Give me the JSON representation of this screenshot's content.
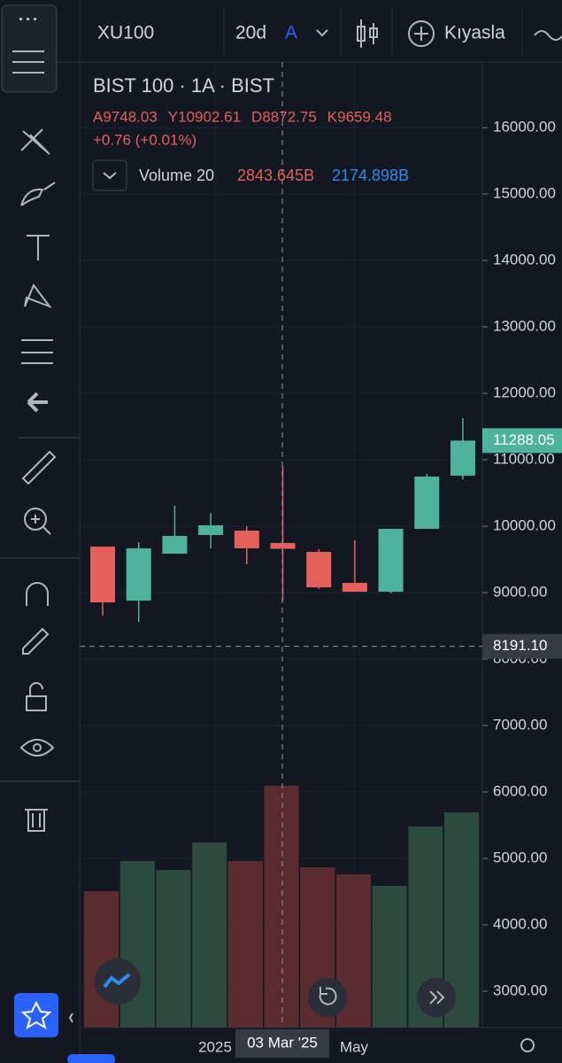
{
  "toolbar": {
    "symbol": "XU100",
    "interval": "20d",
    "mode": "A",
    "compare": "Kıyasla"
  },
  "legend": {
    "title": "BIST 100 · 1A · BIST",
    "ohlc_letters": [
      "A",
      "Y",
      "D",
      "K"
    ],
    "change": "+0.76 (+0.01%)",
    "volume_name": "Volume 20",
    "volume_values": [
      "2843.645B",
      "2174.898B"
    ]
  },
  "xaxis_labels": [
    "2025",
    "May"
  ],
  "crosshair": {
    "price": 8191.1,
    "price_label": "8191.10",
    "date_label": "03 Mar '25"
  },
  "last_price": {
    "value": 11288.05,
    "label": "11288.05"
  },
  "chart_data": {
    "type": "candlestick",
    "up_color": "#4db39e",
    "down_color": "#e5605a",
    "ylim": [
      2453,
      16987
    ],
    "yticks": [
      {
        "value": 3000,
        "label": "3000.00"
      },
      {
        "value": 4000,
        "label": "4000.00"
      },
      {
        "value": 5000,
        "label": "5000.00"
      },
      {
        "value": 6000,
        "label": "6000.00"
      },
      {
        "value": 7000,
        "label": "7000.00"
      },
      {
        "value": 8000,
        "label": "8000.00"
      },
      {
        "value": 9000,
        "label": "9000.00"
      },
      {
        "value": 10000,
        "label": "10000.00"
      },
      {
        "value": 11000,
        "label": "11000.00"
      },
      {
        "value": 12000,
        "label": "12000.00"
      },
      {
        "value": 13000,
        "label": "13000.00"
      },
      {
        "value": 14000,
        "label": "14000.00"
      },
      {
        "value": 15000,
        "label": "15000.00"
      },
      {
        "value": 16000,
        "label": "16000.00"
      }
    ],
    "grid": true,
    "candles": [
      {
        "open": 9693,
        "high": 9693,
        "low": 8653,
        "close": 8853,
        "volume": 1604
      },
      {
        "open": 8880,
        "high": 9760,
        "low": 8560,
        "close": 9667,
        "volume": 1958
      },
      {
        "open": 9587,
        "high": 10307,
        "low": 9587,
        "close": 9853,
        "volume": 1854
      },
      {
        "open": 9867,
        "high": 10200,
        "low": 9667,
        "close": 10013,
        "volume": 2177
      },
      {
        "open": 9933,
        "high": 10000,
        "low": 9427,
        "close": 9667,
        "volume": 1958
      },
      {
        "open": 9748.03,
        "high": 10902.61,
        "low": 8872.75,
        "close": 9659.48,
        "volume": 2843.645
      },
      {
        "open": 9613,
        "high": 9653,
        "low": 9053,
        "close": 9080,
        "volume": 1885
      },
      {
        "open": 9147,
        "high": 9787,
        "low": 9013,
        "close": 9013,
        "volume": 1802
      },
      {
        "open": 9013,
        "high": 9960,
        "low": 8987,
        "close": 9960,
        "volume": 1667
      },
      {
        "open": 9960,
        "high": 10787,
        "low": 9960,
        "close": 10747,
        "volume": 2364
      },
      {
        "open": 10760,
        "high": 11627,
        "low": 10707,
        "close": 11288.05,
        "volume": 2531
      }
    ]
  }
}
